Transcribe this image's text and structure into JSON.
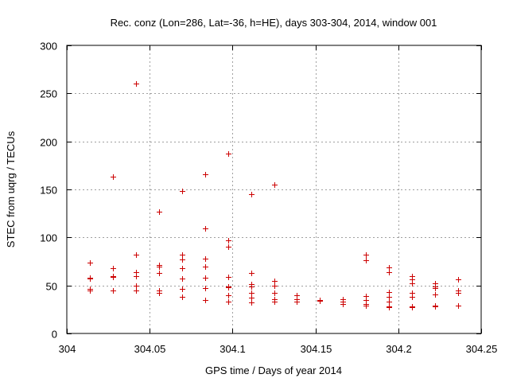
{
  "chart_data": {
    "type": "scatter",
    "title": "Rec. conz (Lon=286, Lat=-36, h=HE), days 303-304, 2014, window 001",
    "xlabel": "GPS time / Days of year 2014",
    "ylabel": "STEC from uqrg / TECUs",
    "xlim": [
      304,
      304.25
    ],
    "ylim": [
      0,
      300
    ],
    "x_ticks": [
      304,
      304.05,
      304.1,
      304.15,
      304.2,
      304.25
    ],
    "x_tick_labels": [
      "304",
      "304.05",
      "304.1",
      "304.15",
      "304.2",
      "304.25"
    ],
    "y_ticks": [
      0,
      50,
      100,
      150,
      200,
      250,
      300
    ],
    "y_tick_labels": [
      "0",
      "50",
      "100",
      "150",
      "200",
      "250",
      "300"
    ],
    "grid": true,
    "marker": "+",
    "color": "#cc0000",
    "series": [
      {
        "name": "STEC",
        "points": [
          [
            304.0139,
            74
          ],
          [
            304.0139,
            58
          ],
          [
            304.0139,
            57
          ],
          [
            304.0139,
            46
          ],
          [
            304.0139,
            45
          ],
          [
            304.0278,
            163
          ],
          [
            304.0278,
            68
          ],
          [
            304.0278,
            60
          ],
          [
            304.0278,
            59
          ],
          [
            304.0278,
            45
          ],
          [
            304.0417,
            260
          ],
          [
            304.0417,
            82
          ],
          [
            304.0417,
            64
          ],
          [
            304.0417,
            60
          ],
          [
            304.0417,
            50
          ],
          [
            304.0417,
            45
          ],
          [
            304.0556,
            127
          ],
          [
            304.0556,
            71
          ],
          [
            304.0556,
            70
          ],
          [
            304.0556,
            63
          ],
          [
            304.0556,
            45
          ],
          [
            304.0556,
            42
          ],
          [
            304.0694,
            148
          ],
          [
            304.0694,
            82
          ],
          [
            304.0694,
            77
          ],
          [
            304.0694,
            68
          ],
          [
            304.0694,
            57
          ],
          [
            304.0694,
            46
          ],
          [
            304.0694,
            38
          ],
          [
            304.0833,
            166
          ],
          [
            304.0833,
            109
          ],
          [
            304.0833,
            78
          ],
          [
            304.0833,
            70
          ],
          [
            304.0833,
            58
          ],
          [
            304.0833,
            47
          ],
          [
            304.0833,
            35
          ],
          [
            304.0972,
            187
          ],
          [
            304.0972,
            97
          ],
          [
            304.0972,
            90
          ],
          [
            304.0972,
            59
          ],
          [
            304.0972,
            49
          ],
          [
            304.0972,
            48
          ],
          [
            304.0972,
            40
          ],
          [
            304.0972,
            33
          ],
          [
            304.1111,
            145
          ],
          [
            304.1111,
            63
          ],
          [
            304.1111,
            51
          ],
          [
            304.1111,
            49
          ],
          [
            304.1111,
            42
          ],
          [
            304.1111,
            37
          ],
          [
            304.1111,
            32
          ],
          [
            304.125,
            155
          ],
          [
            304.125,
            55
          ],
          [
            304.125,
            50
          ],
          [
            304.125,
            42
          ],
          [
            304.125,
            36
          ],
          [
            304.125,
            33
          ],
          [
            304.1389,
            40
          ],
          [
            304.1389,
            36
          ],
          [
            304.1389,
            33
          ],
          [
            304.1528,
            35
          ],
          [
            304.1528,
            34
          ],
          [
            304.1667,
            36
          ],
          [
            304.1667,
            33
          ],
          [
            304.1667,
            31
          ],
          [
            304.1806,
            82
          ],
          [
            304.1806,
            76
          ],
          [
            304.1806,
            39
          ],
          [
            304.1806,
            35
          ],
          [
            304.1806,
            31
          ],
          [
            304.1806,
            29
          ],
          [
            304.1944,
            69
          ],
          [
            304.1944,
            64
          ],
          [
            304.1944,
            43
          ],
          [
            304.1944,
            38
          ],
          [
            304.1944,
            33
          ],
          [
            304.1944,
            28
          ],
          [
            304.1944,
            27
          ],
          [
            304.2083,
            60
          ],
          [
            304.2083,
            56
          ],
          [
            304.2083,
            52
          ],
          [
            304.2083,
            42
          ],
          [
            304.2083,
            38
          ],
          [
            304.2083,
            28
          ],
          [
            304.2083,
            27
          ],
          [
            304.2222,
            52
          ],
          [
            304.2222,
            49
          ],
          [
            304.2222,
            47
          ],
          [
            304.2222,
            41
          ],
          [
            304.2222,
            29
          ],
          [
            304.2222,
            28
          ],
          [
            304.2361,
            56
          ],
          [
            304.2361,
            45
          ],
          [
            304.2361,
            42
          ],
          [
            304.2361,
            29
          ]
        ]
      }
    ]
  }
}
